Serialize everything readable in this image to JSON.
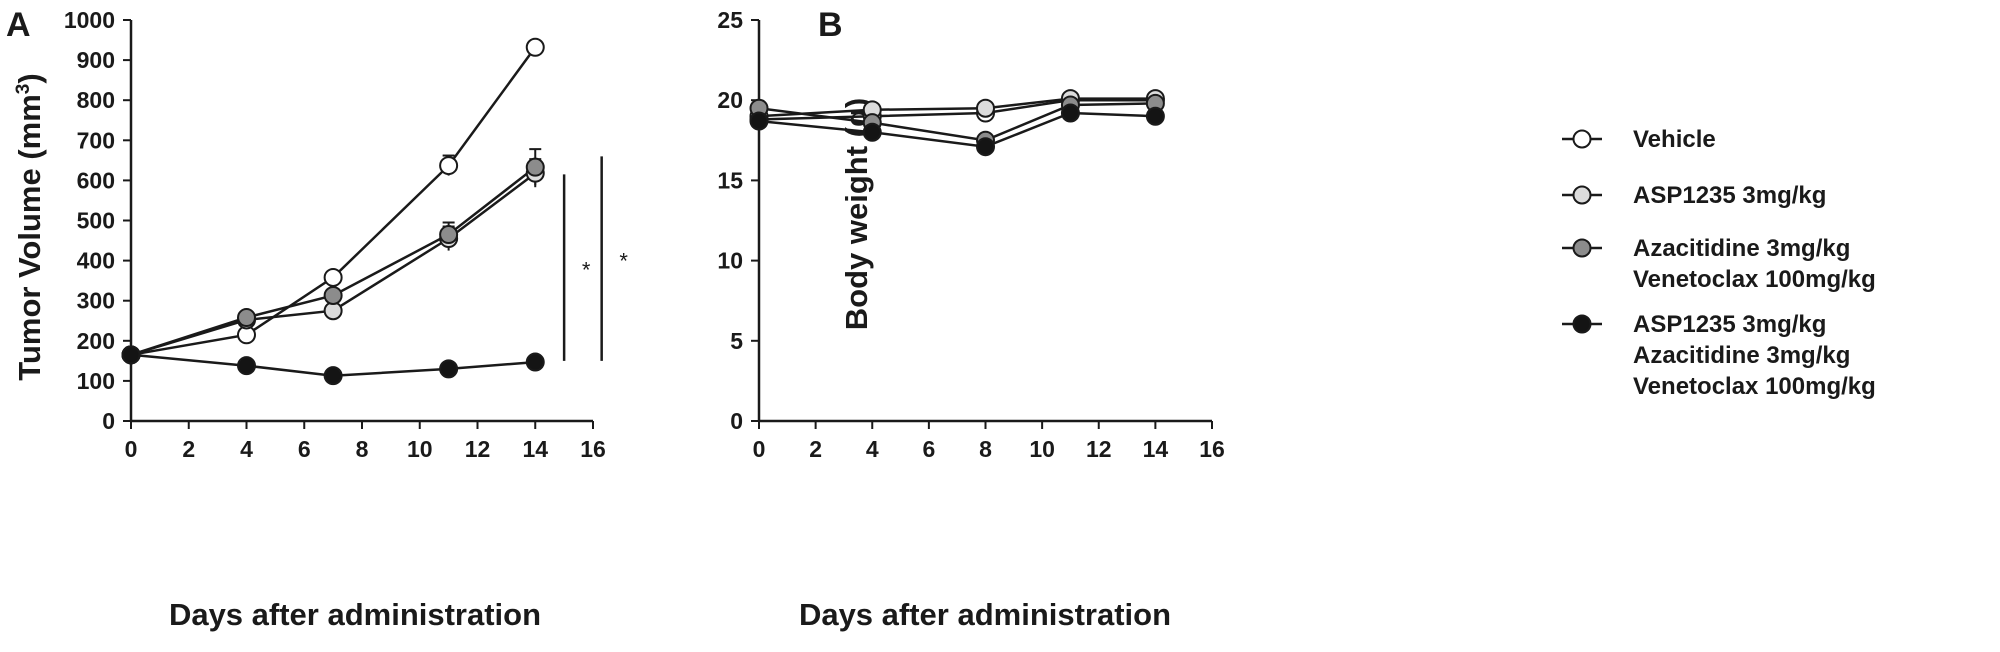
{
  "colors": {
    "axis": "#1a1a1a",
    "vehicle_fill": "#ffffff",
    "asp_fill": "#dcdcdc",
    "aza_fill": "#8c8c8c",
    "combo_fill": "#141414"
  },
  "legend": [
    {
      "lines": [
        "Vehicle"
      ],
      "fill": "#ffffff"
    },
    {
      "lines": [
        "ASP1235 3mg/kg"
      ],
      "fill": "#dcdcdc"
    },
    {
      "lines": [
        "Azacitidine 3mg/kg",
        "Venetoclax 100mg/kg"
      ],
      "fill": "#8c8c8c"
    },
    {
      "lines": [
        "ASP1235 3mg/kg",
        "Azacitidine 3mg/kg",
        "Venetoclax 100mg/kg"
      ],
      "fill": "#141414"
    }
  ],
  "chart_data": [
    {
      "type": "line",
      "panel": "A",
      "xlabel": "Days after administration",
      "ylabel_main": "Tumor Volume (mm",
      "ylabel_sup": "3",
      "ylabel_end": ")",
      "xlim": [
        0,
        16
      ],
      "ylim": [
        0,
        1000
      ],
      "xticks": [
        0,
        2,
        4,
        6,
        8,
        10,
        12,
        14,
        16
      ],
      "yticks": [
        0,
        100,
        200,
        300,
        400,
        500,
        600,
        700,
        800,
        900,
        1000
      ],
      "x": [
        0,
        4,
        7,
        11,
        14
      ],
      "series": [
        {
          "fill": "#ffffff",
          "values": [
            165,
            215,
            358,
            637,
            932
          ],
          "err": [
            5,
            10,
            12,
            25,
            8
          ]
        },
        {
          "fill": "#dcdcdc",
          "values": [
            165,
            252,
            275,
            455,
            618
          ],
          "err": [
            5,
            10,
            12,
            30,
            35
          ]
        },
        {
          "fill": "#8c8c8c",
          "values": [
            165,
            258,
            313,
            465,
            633
          ],
          "err": [
            5,
            10,
            12,
            30,
            45
          ]
        },
        {
          "fill": "#141414",
          "values": [
            165,
            138,
            113,
            130,
            147
          ],
          "err": [
            5,
            8,
            6,
            8,
            10
          ]
        }
      ],
      "significance": [
        {
          "label": "*",
          "x": 15.0,
          "y1": 150,
          "y2": 615
        },
        {
          "label": "*",
          "x": 16.3,
          "y1": 150,
          "y2": 660
        }
      ]
    },
    {
      "type": "line",
      "panel": "B",
      "xlabel": "Days after administration",
      "ylabel_main": "Body weight (g)",
      "ylabel_sup": "",
      "ylabel_end": "",
      "xlim": [
        0,
        16
      ],
      "ylim": [
        0,
        25
      ],
      "xticks": [
        0,
        2,
        4,
        6,
        8,
        10,
        12,
        14,
        16
      ],
      "yticks": [
        0,
        5,
        10,
        15,
        20,
        25
      ],
      "x": [
        0,
        4,
        8,
        11,
        14
      ],
      "series": [
        {
          "fill": "#ffffff",
          "values": [
            18.8,
            19.0,
            19.2,
            20.0,
            20.0
          ],
          "err": [
            0.3,
            0.3,
            0.3,
            0.3,
            0.3
          ]
        },
        {
          "fill": "#dcdcdc",
          "values": [
            19.0,
            19.4,
            19.5,
            20.1,
            20.1
          ],
          "err": [
            0.3,
            0.3,
            0.3,
            0.3,
            0.3
          ]
        },
        {
          "fill": "#8c8c8c",
          "values": [
            19.5,
            18.6,
            17.5,
            19.7,
            19.8
          ],
          "err": [
            0.3,
            0.3,
            0.3,
            0.3,
            0.3
          ]
        },
        {
          "fill": "#141414",
          "values": [
            18.7,
            18.0,
            17.1,
            19.2,
            19.0
          ],
          "err": [
            0.3,
            0.3,
            0.3,
            0.3,
            0.3
          ]
        }
      ],
      "significance": []
    }
  ]
}
